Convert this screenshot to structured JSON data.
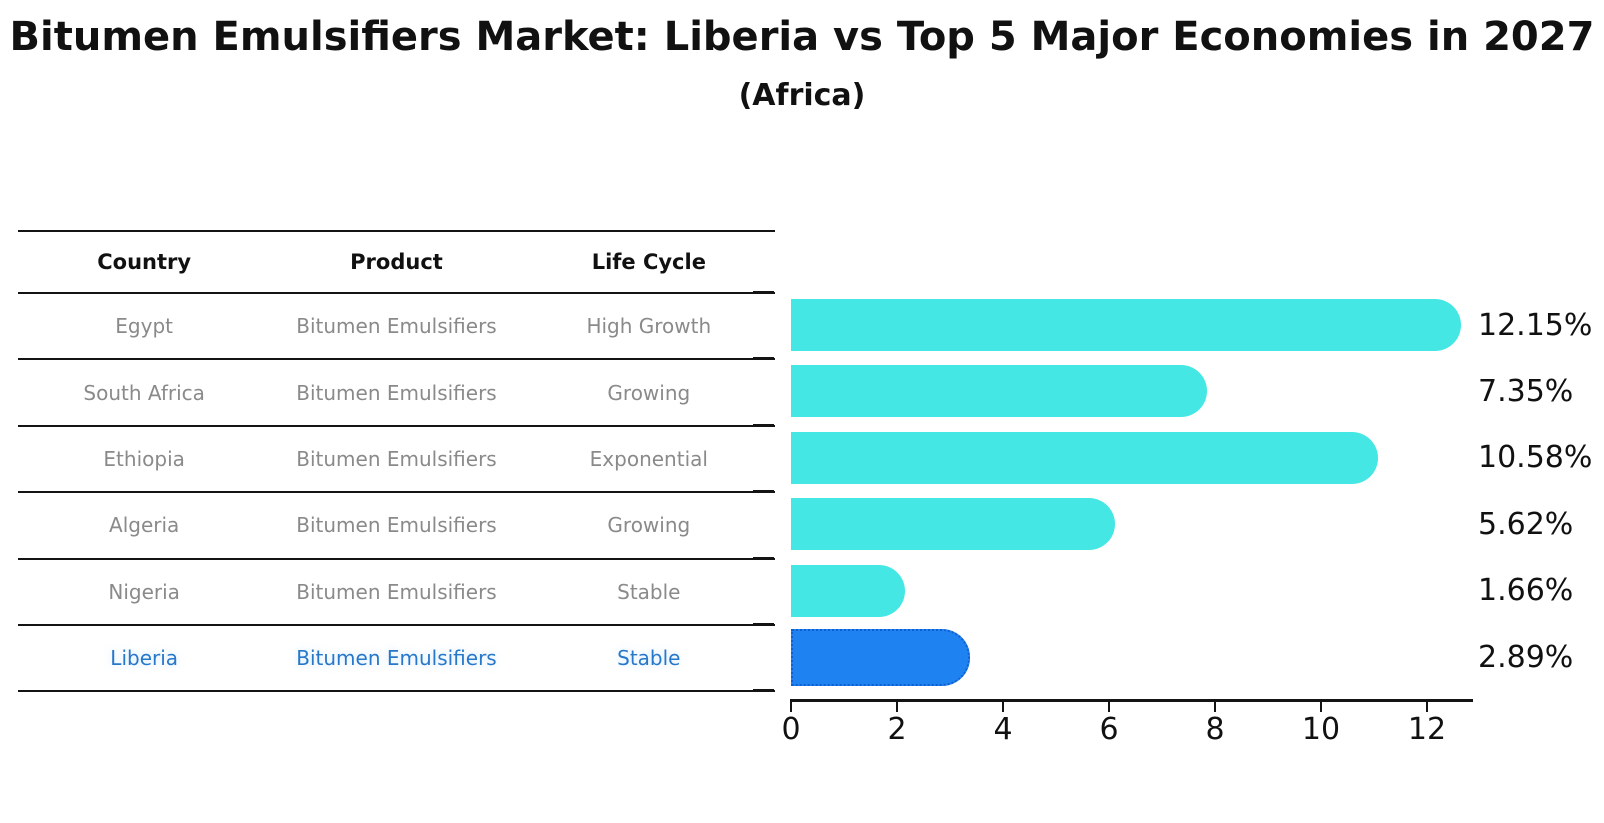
{
  "title": "Bitumen Emulsifiers Market: Liberia vs Top 5 Major Economies in 2027",
  "subtitle": "(Africa)",
  "table": {
    "headers": [
      "Country",
      "Product",
      "Life Cycle"
    ],
    "rows": [
      {
        "country": "Egypt",
        "product": "Bitumen Emulsifiers",
        "life_cycle": "High Growth",
        "highlight": false
      },
      {
        "country": "South Africa",
        "product": "Bitumen Emulsifiers",
        "life_cycle": "Growing",
        "highlight": false
      },
      {
        "country": "Ethiopia",
        "product": "Bitumen Emulsifiers",
        "life_cycle": "Exponential",
        "highlight": false
      },
      {
        "country": "Algeria",
        "product": "Bitumen Emulsifiers",
        "life_cycle": "Growing",
        "highlight": false
      },
      {
        "country": "Nigeria",
        "product": "Bitumen Emulsifiers",
        "life_cycle": "Stable",
        "highlight": false
      },
      {
        "country": "Liberia",
        "product": "Bitumen Emulsifiers",
        "life_cycle": "Stable",
        "highlight": true
      }
    ]
  },
  "chart_data": {
    "type": "bar",
    "orientation": "horizontal",
    "title": "Bitumen Emulsifiers Market: Liberia vs Top 5 Major Economies in 2027",
    "subtitle": "(Africa)",
    "categories": [
      "Egypt",
      "South Africa",
      "Ethiopia",
      "Algeria",
      "Nigeria",
      "Liberia"
    ],
    "values": [
      12.15,
      7.35,
      10.58,
      5.62,
      1.66,
      2.89
    ],
    "value_labels": [
      "12.15%",
      "7.35%",
      "10.58%",
      "5.62%",
      "1.66%",
      "2.89%"
    ],
    "xticks": [
      "0",
      "2",
      "4",
      "6",
      "8",
      "10",
      "12"
    ],
    "xlim": [
      0,
      12.9
    ],
    "ylabel": "",
    "xlabel": "",
    "grid": false,
    "legend": false,
    "highlight_index": 5,
    "bar_color": "#44E7E3",
    "highlight_bar_color": "#1E82F0",
    "highlight_border_color": "#0F5FD0"
  },
  "colors": {
    "background": "#ffffff",
    "title": "#111111",
    "table_header_text": "#111111",
    "table_cell_text": "#8a8a8a",
    "highlight_text": "#2878C9",
    "axis": "#141414"
  }
}
